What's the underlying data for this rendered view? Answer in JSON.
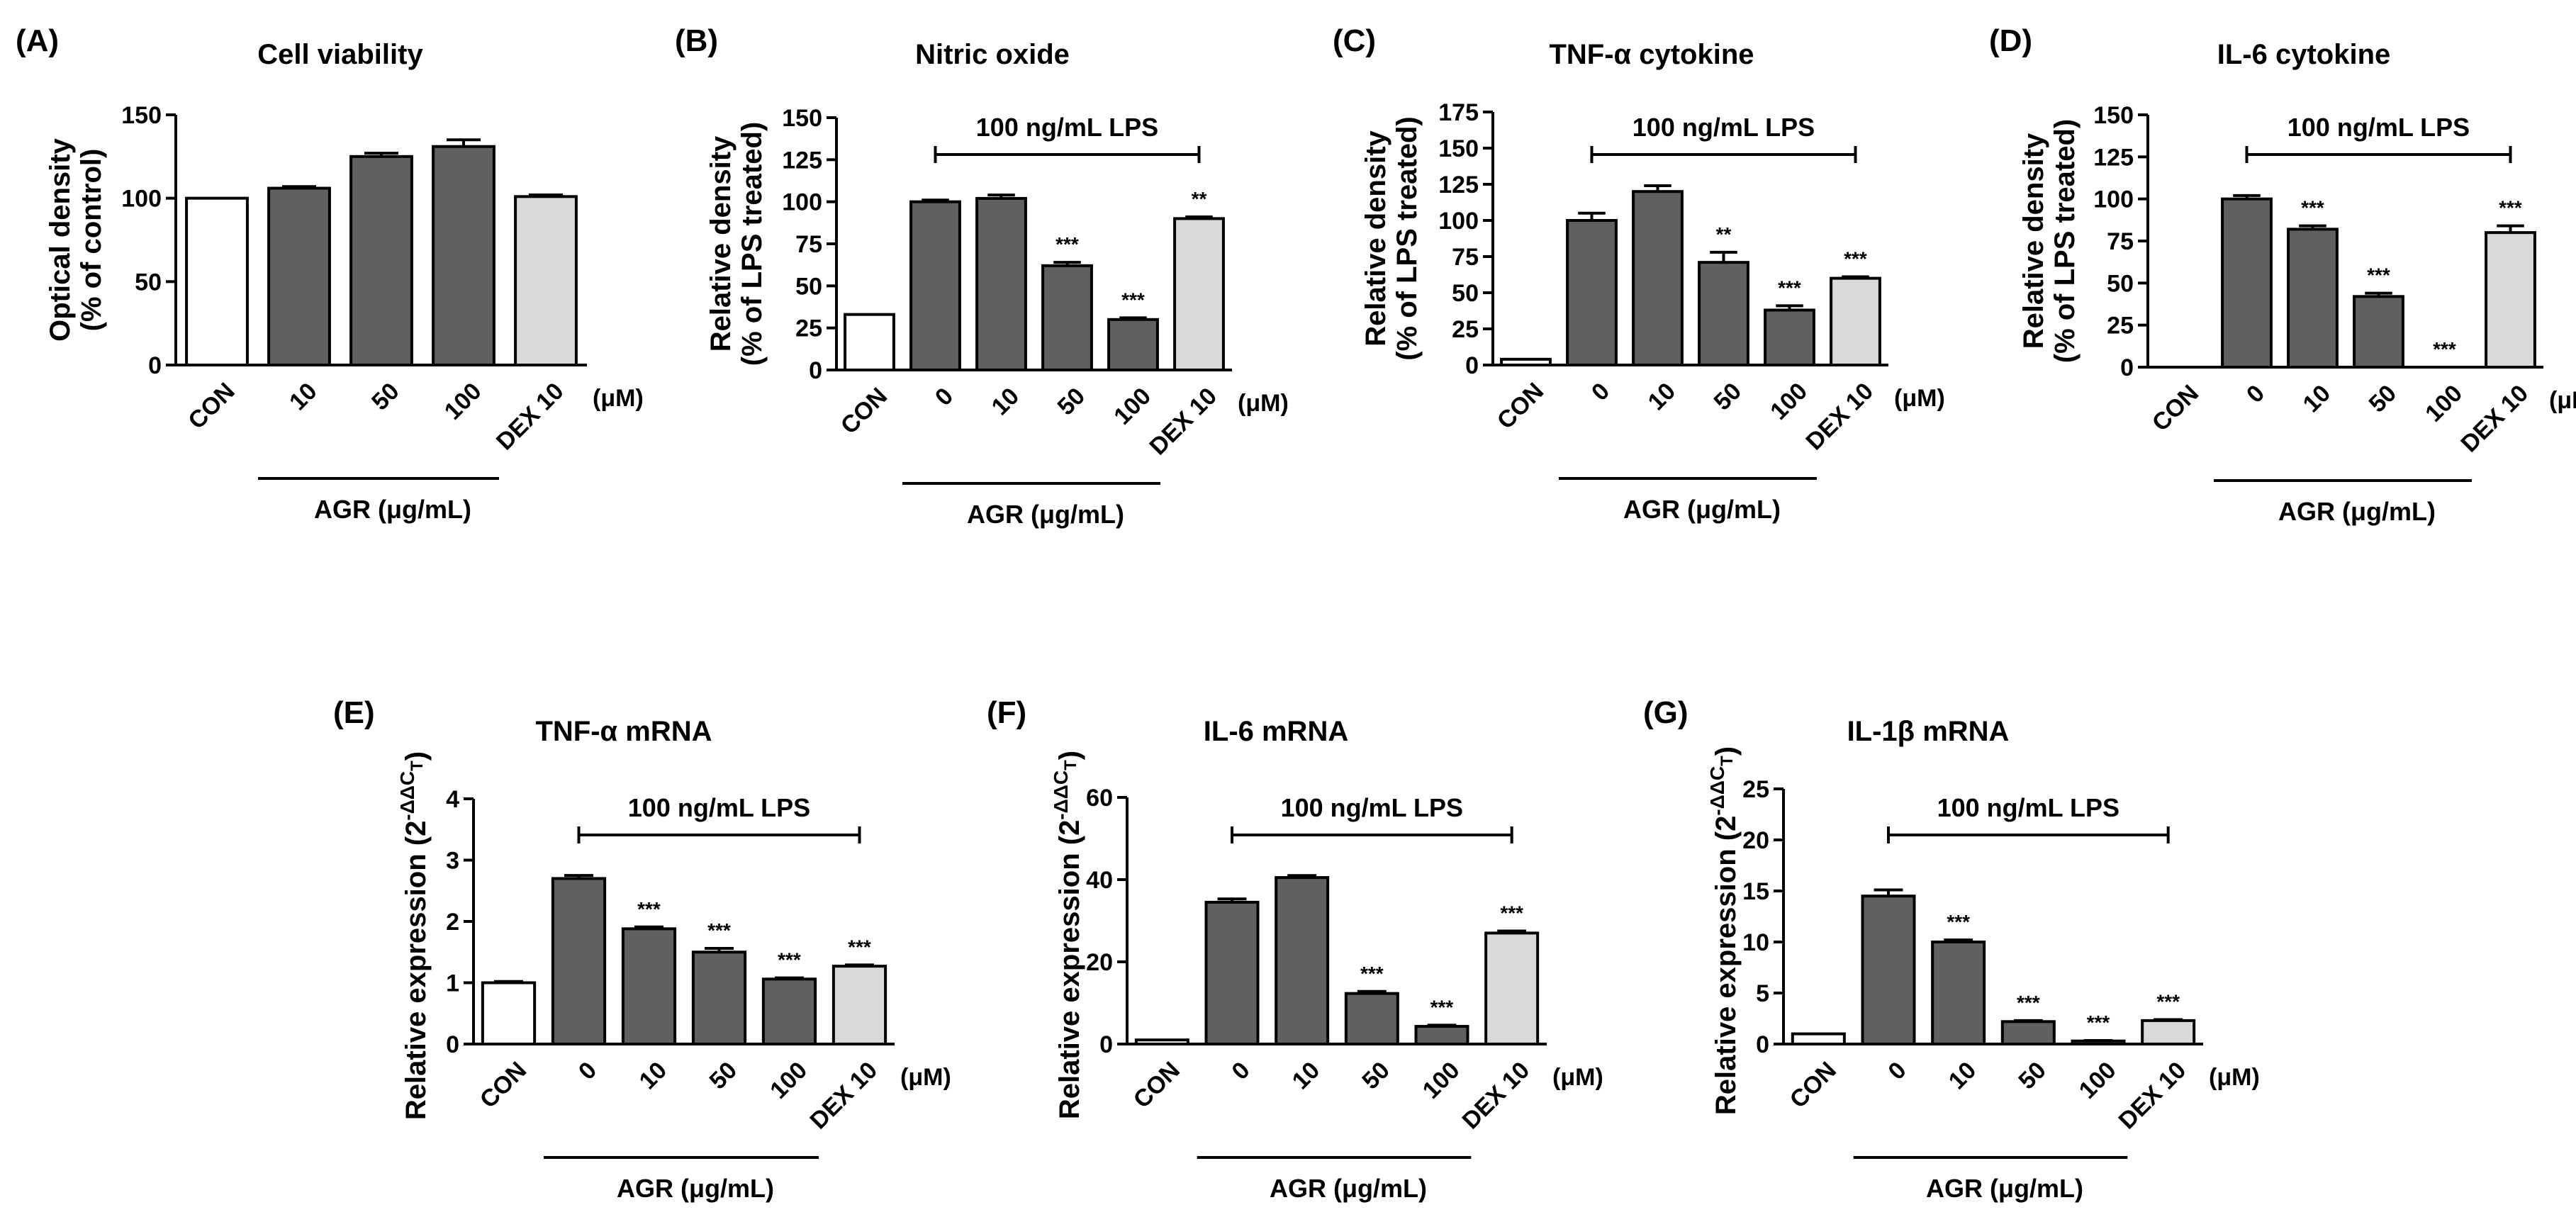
{
  "colors": {
    "control": "#ffffff",
    "agr": "#606060",
    "dex": "#d9d9d9",
    "axis": "#000000"
  },
  "chart_data": [
    {
      "panel": "(A)",
      "title": "Cell viability",
      "type": "bar",
      "ylabel": [
        "Optical density",
        "(% of control)"
      ],
      "ylabel_sup": "",
      "ylim": [
        0,
        150
      ],
      "yticks": [
        0,
        50,
        100,
        150
      ],
      "categories": [
        "CON",
        "10",
        "50",
        "100",
        "DEX 10"
      ],
      "values": [
        100,
        106,
        125,
        131,
        101
      ],
      "errors": [
        0,
        1,
        2,
        4,
        1
      ],
      "significance": [
        "",
        "",
        "",
        "",
        ""
      ],
      "bar_colors": [
        "control",
        "agr",
        "agr",
        "agr",
        "dex"
      ],
      "unit": "(μM)",
      "group_label": "AGR (μg/mL)",
      "group_span": [
        1,
        3
      ],
      "lps_label": "",
      "lps_span": []
    },
    {
      "panel": "(B)",
      "title": "Nitric oxide",
      "type": "bar",
      "ylabel": [
        "Relative density",
        "(% of LPS treated)"
      ],
      "ylabel_sup": "",
      "ylim": [
        0,
        150
      ],
      "yticks": [
        0,
        25,
        50,
        75,
        100,
        125,
        150
      ],
      "categories": [
        "CON",
        "0",
        "10",
        "50",
        "100",
        "DEX 10"
      ],
      "values": [
        33,
        100,
        102,
        62,
        30,
        90
      ],
      "errors": [
        0,
        1,
        2,
        2,
        1,
        1
      ],
      "significance": [
        "",
        "",
        "",
        "***",
        "***",
        "**"
      ],
      "bar_colors": [
        "control",
        "agr",
        "agr",
        "agr",
        "agr",
        "dex"
      ],
      "unit": "(μM)",
      "group_label": "AGR (μg/mL)",
      "group_span": [
        1,
        4
      ],
      "lps_label": "100 ng/mL LPS",
      "lps_span": [
        1,
        5
      ]
    },
    {
      "panel": "(C)",
      "title": "TNF-α cytokine",
      "type": "bar",
      "ylabel": [
        "Relative density",
        "(% of LPS treated)"
      ],
      "ylabel_sup": "",
      "ylim": [
        0,
        175
      ],
      "yticks": [
        0,
        25,
        50,
        75,
        100,
        125,
        150,
        175
      ],
      "categories": [
        "CON",
        "0",
        "10",
        "50",
        "100",
        "DEX 10"
      ],
      "values": [
        4,
        100,
        120,
        71,
        38,
        60
      ],
      "errors": [
        0,
        5,
        4,
        7,
        3,
        1
      ],
      "significance": [
        "",
        "",
        "",
        "**",
        "***",
        "***"
      ],
      "bar_colors": [
        "control",
        "agr",
        "agr",
        "agr",
        "agr",
        "dex"
      ],
      "unit": "(μM)",
      "group_label": "AGR (μg/mL)",
      "group_span": [
        1,
        4
      ],
      "lps_label": "100 ng/mL LPS",
      "lps_span": [
        1,
        5
      ]
    },
    {
      "panel": "(D)",
      "title": "IL-6 cytokine",
      "type": "bar",
      "ylabel": [
        "Relative density",
        "(% of LPS treated)"
      ],
      "ylabel_sup": "",
      "ylim": [
        0,
        150
      ],
      "yticks": [
        0,
        25,
        50,
        75,
        100,
        125,
        150
      ],
      "categories": [
        "CON",
        "0",
        "10",
        "50",
        "100",
        "DEX 10"
      ],
      "values": [
        0,
        100,
        82,
        42,
        0,
        80
      ],
      "errors": [
        0,
        2,
        2,
        2,
        0,
        4
      ],
      "significance": [
        "",
        "",
        "***",
        "***",
        "***",
        "***"
      ],
      "bar_colors": [
        "control",
        "agr",
        "agr",
        "agr",
        "agr",
        "dex"
      ],
      "unit": "(μM)",
      "group_label": "AGR (μg/mL)",
      "group_span": [
        1,
        4
      ],
      "lps_label": "100 ng/mL LPS",
      "lps_span": [
        1,
        5
      ]
    },
    {
      "panel": "(E)",
      "title": "TNF-α mRNA",
      "type": "bar",
      "ylabel": [
        "Relative expression (2"
      ],
      "ylabel_sup": "-ΔΔC",
      "ylabel_sub": "T",
      "ylabel_close": ")",
      "ylim": [
        0,
        4
      ],
      "yticks": [
        0,
        1,
        2,
        3,
        4
      ],
      "categories": [
        "CON",
        "0",
        "10",
        "50",
        "100",
        "DEX 10"
      ],
      "values": [
        1.0,
        2.7,
        1.88,
        1.5,
        1.06,
        1.27
      ],
      "errors": [
        0.02,
        0.05,
        0.03,
        0.06,
        0.02,
        0.02
      ],
      "significance": [
        "",
        "",
        "***",
        "***",
        "***",
        "***"
      ],
      "bar_colors": [
        "control",
        "agr",
        "agr",
        "agr",
        "agr",
        "dex"
      ],
      "unit": "(μM)",
      "group_label": "AGR (μg/mL)",
      "group_span": [
        1,
        4
      ],
      "lps_label": "100 ng/mL LPS",
      "lps_span": [
        1,
        5
      ]
    },
    {
      "panel": "(F)",
      "title": "IL-6 mRNA",
      "type": "bar",
      "ylabel": [
        "Relative expression (2"
      ],
      "ylabel_sup": "-ΔΔC",
      "ylabel_sub": "T",
      "ylabel_close": ")",
      "ylim": [
        0,
        60
      ],
      "yticks": [
        0,
        20,
        40,
        60
      ],
      "categories": [
        "CON",
        "0",
        "10",
        "50",
        "100",
        "DEX 10"
      ],
      "values": [
        1,
        34.5,
        40.5,
        12.3,
        4.3,
        27
      ],
      "errors": [
        0,
        0.8,
        0.5,
        0.5,
        0.3,
        0.5
      ],
      "significance": [
        "",
        "",
        "",
        "***",
        "***",
        "***"
      ],
      "bar_colors": [
        "control",
        "agr",
        "agr",
        "agr",
        "agr",
        "dex"
      ],
      "unit": "(μM)",
      "group_label": "AGR (μg/mL)",
      "group_span": [
        1,
        4
      ],
      "lps_label": "100 ng/mL LPS",
      "lps_span": [
        1,
        5
      ]
    },
    {
      "panel": "(G)",
      "title": "IL-1β mRNA",
      "type": "bar",
      "ylabel": [
        "Relative expression (2"
      ],
      "ylabel_sup": "-ΔΔC",
      "ylabel_sub": "T",
      "ylabel_close": ")",
      "ylim": [
        0,
        25
      ],
      "yticks": [
        0,
        5,
        10,
        15,
        20,
        25
      ],
      "categories": [
        "CON",
        "0",
        "10",
        "50",
        "100",
        "DEX 10"
      ],
      "values": [
        1,
        14.5,
        10,
        2.2,
        0.3,
        2.3
      ],
      "errors": [
        0,
        0.6,
        0.2,
        0.1,
        0.05,
        0.1
      ],
      "significance": [
        "",
        "",
        "***",
        "***",
        "***",
        "***"
      ],
      "bar_colors": [
        "control",
        "agr",
        "agr",
        "agr",
        "agr",
        "dex"
      ],
      "unit": "(μM)",
      "group_label": "AGR (μg/mL)",
      "group_span": [
        1,
        4
      ],
      "lps_label": "100 ng/mL LPS",
      "lps_span": [
        1,
        5
      ]
    }
  ]
}
